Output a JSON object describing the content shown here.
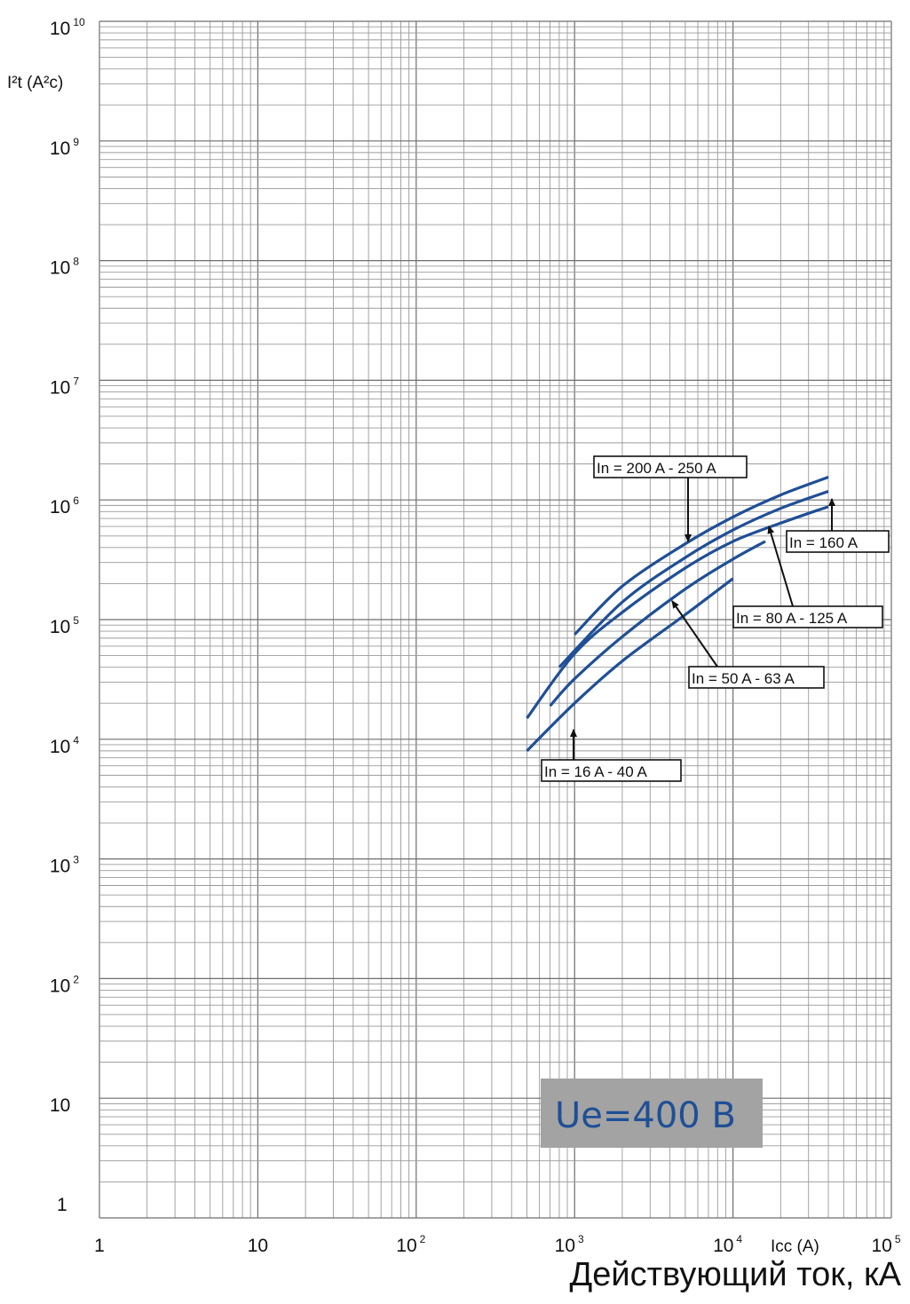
{
  "chart_data": {
    "type": "line",
    "title": "",
    "xlabel": "Icc (A)",
    "xlabel_main": "Действующий ток, кА",
    "ylabel": "I²t (A²c)",
    "xscale": "log",
    "yscale": "log",
    "xlim": [
      1,
      100000
    ],
    "ylim": [
      1,
      10000000000
    ],
    "grid": true,
    "annotation": "Ue=400 B",
    "x_ticks": [
      {
        "base": "1",
        "exp": ""
      },
      {
        "base": "10",
        "exp": ""
      },
      {
        "base": "10",
        "exp": "2"
      },
      {
        "base": "10",
        "exp": "3"
      },
      {
        "base": "10",
        "exp": "4"
      },
      {
        "base": "10",
        "exp": "5"
      }
    ],
    "y_ticks": [
      {
        "base": "1",
        "exp": ""
      },
      {
        "base": "10",
        "exp": ""
      },
      {
        "base": "10",
        "exp": "2"
      },
      {
        "base": "10",
        "exp": "3"
      },
      {
        "base": "10",
        "exp": "4"
      },
      {
        "base": "10",
        "exp": "5"
      },
      {
        "base": "10",
        "exp": "6"
      },
      {
        "base": "10",
        "exp": "7"
      },
      {
        "base": "10",
        "exp": "8"
      },
      {
        "base": "10",
        "exp": "9"
      },
      {
        "base": "10",
        "exp": "10"
      }
    ],
    "series": [
      {
        "name": "In = 200 A - 250 A",
        "x": [
          1000,
          2000,
          5000,
          10000,
          20000,
          40000
        ],
        "y": [
          75000,
          190000,
          430000,
          720000,
          1100000,
          1550000
        ]
      },
      {
        "name": "In = 160 A",
        "x": [
          800,
          2000,
          5000,
          10000,
          20000,
          40000
        ],
        "y": [
          40000,
          140000,
          330000,
          560000,
          850000,
          1180000
        ]
      },
      {
        "name": "In = 80 A - 125 A",
        "x": [
          500,
          1000,
          2000,
          5000,
          10000,
          20000,
          40000
        ],
        "y": [
          15000,
          52000,
          115000,
          270000,
          450000,
          640000,
          880000
        ]
      },
      {
        "name": "In = 50 A - 63 A",
        "x": [
          700,
          1000,
          2000,
          5000,
          10000,
          16000
        ],
        "y": [
          19000,
          32000,
          72000,
          180000,
          320000,
          450000
        ]
      },
      {
        "name": "In = 16 A - 40 A",
        "x": [
          500,
          1000,
          2000,
          5000,
          10000
        ],
        "y": [
          8000,
          20000,
          45000,
          110000,
          220000
        ]
      }
    ]
  }
}
